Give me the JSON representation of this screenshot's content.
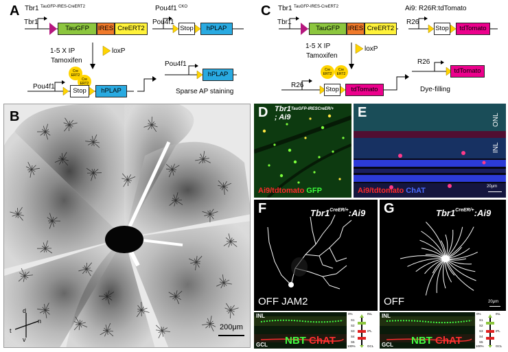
{
  "panel_a": {
    "label": "A",
    "tbr1_title": "Tbr1",
    "tbr1_title_sup": "TauGFP-IRES-CreERT2",
    "tbr1_gene": "Tbr1",
    "taugfp": "TauGFP",
    "ires": "IRES",
    "creert2": "CreERT2",
    "pou4f1_title": "Pou4f1",
    "pou4f1_title_sup": "CKO",
    "pou4f1_gene": "Pou4f1",
    "stop": "Stop",
    "hplap": "hPLAP",
    "treatment_1": "1-5 X IP",
    "treatment_2": "Tamoxifen",
    "loxp": "loxP",
    "cre_1": "Cre ERT2",
    "cre_2": "Cre ERT2",
    "pou4f1_lower": "Pou4f1",
    "stop_lower": "Stop",
    "hplap_lower": "hPLAP",
    "pou4f1_result": "Pou4f1",
    "hplap_result": "hPLAP",
    "outcome": "Sparse AP staining"
  },
  "panel_c": {
    "label": "C",
    "tbr1_title": "Tbr1",
    "tbr1_title_sup": "TauGFP-IRES-CreERT2",
    "tbr1_gene": "Tbr1",
    "taugfp": "TauGFP",
    "ires": "IRES",
    "creert2": "CreERT2",
    "ai9_title": "Ai9: R26R:tdTomato",
    "r26_gene": "R26",
    "stop": "Stop",
    "tdtomato": "tdTomato",
    "treatment_1": "1-5 X IP",
    "treatment_2": "Tamoxifen",
    "loxp": "loxP",
    "cre_1": "Cre ERT2",
    "cre_2": "Cre ERT2",
    "r26_lower": "R26",
    "stop_lower": "Stop",
    "tdtomato_lower": "tdTomato",
    "r26_result": "R26",
    "tdtomato_result": "tdTomato",
    "outcome": "Dye-filling"
  },
  "panel_b": {
    "label": "B",
    "scale": "200μm",
    "compass_d": "d",
    "compass_n": "n",
    "compass_t": "t",
    "compass_v": "v"
  },
  "panel_d": {
    "label": "D",
    "genotype": "Tbr1",
    "genotype_sup": "TauGFP-IRESCreER/+",
    "genotype_line2": "; Ai9",
    "legend_red": "Ai9/tdtomato",
    "legend_green": "GFP"
  },
  "panel_e": {
    "label": "E",
    "onl": "ONL",
    "inl": "INL",
    "legend_red": "Ai9/tdtomato",
    "legend_blue": "ChAT",
    "scale": "20μm"
  },
  "panel_f": {
    "label": "F",
    "genotype": "Tbr1",
    "genotype_sup": "CreER/+",
    "genotype_rest": ":Ai9",
    "cell_type": "OFF JAM2",
    "inl": "INL",
    "gcl": "GCL",
    "nbt": "NBT",
    "chat": "ChAT",
    "scale_0": "0%",
    "scale_100": "100%",
    "s1": "S1",
    "s2": "S2",
    "s3": "S3",
    "s4": "S4",
    "s5": "S5",
    "ipl": "IPL",
    "inl_r": "INL",
    "gcl_r": "GCL"
  },
  "panel_g": {
    "label": "G",
    "genotype": "Tbr1",
    "genotype_sup": "CreER/+",
    "genotype_rest": ":Ai9",
    "cell_type": "OFF",
    "scale": "20μm",
    "inl": "INL",
    "gcl": "GCL",
    "nbt": "NBT",
    "chat": "ChAT",
    "scale_0": "0%",
    "scale_100": "100%",
    "s1": "S1",
    "s2": "S2",
    "s3": "S3",
    "s4": "S4",
    "s5": "S5",
    "ipl": "IPL",
    "inl_r": "INL",
    "gcl_r": "GCL"
  },
  "colors": {
    "taugfp": "#8cc63e",
    "ires": "#f07a2a",
    "creert2": "#fff23a",
    "hplap": "#29aae1",
    "tdtomato": "#ec008c",
    "loxp": "#ffd400",
    "promoter": "#b5177e"
  }
}
